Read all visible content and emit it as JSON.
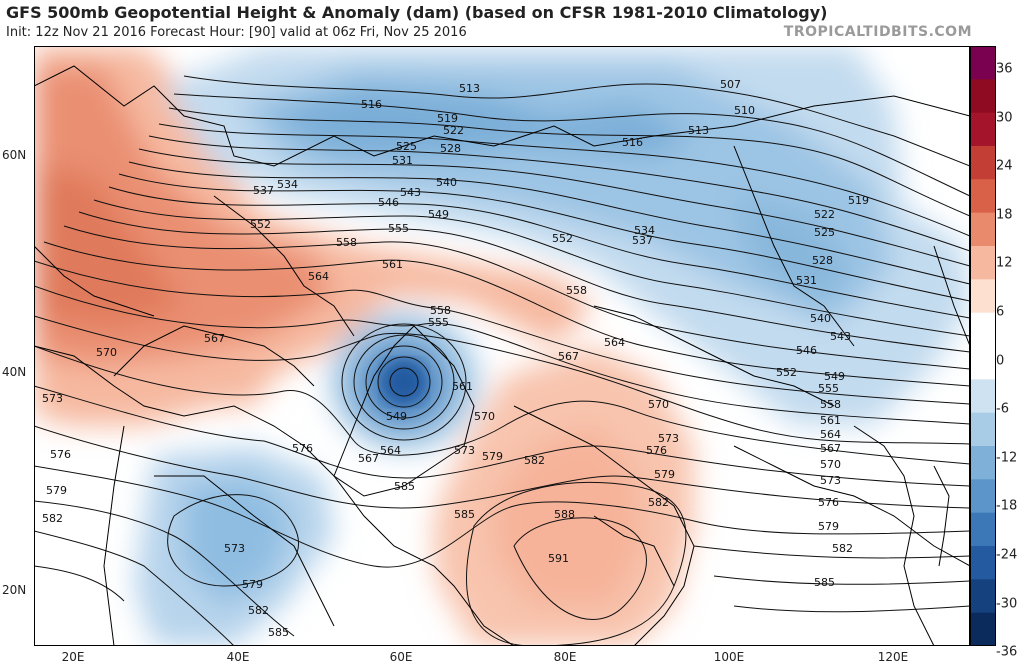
{
  "header": {
    "title": "GFS 500mb Geopotential Height & Anomaly (dam) (based on CFSR 1981-2010 Climatology)",
    "subtitle": "Init: 12z Nov 21 2016   Forecast Hour: [90]   valid at 06z Fri, Nov 25 2016",
    "brand": "TROPICALTIDBITS.COM"
  },
  "axes": {
    "lat_labels": [
      "60N",
      "40N",
      "20N"
    ],
    "lon_labels": [
      "20E",
      "40E",
      "60E",
      "80E",
      "100E",
      "120E"
    ]
  },
  "colorbar": {
    "labels": [
      "36",
      "30",
      "24",
      "18",
      "12",
      "6",
      "0",
      "-6",
      "-12",
      "-18",
      "-24",
      "-30",
      "-36"
    ],
    "colors": [
      "#7a0050",
      "#8e0b22",
      "#a4142a",
      "#c33f35",
      "#d96148",
      "#e98a6c",
      "#f6b9a0",
      "#fde0d0",
      "#ffffff",
      "#ffffff",
      "#cfe2f2",
      "#a8cbe6",
      "#7fb0d8",
      "#5b95c9",
      "#3c78b8",
      "#245aa0",
      "#16417f",
      "#0b2b5c"
    ]
  },
  "contours": {
    "labels": [
      "513",
      "507",
      "510",
      "513",
      "516",
      "519",
      "522",
      "525",
      "528",
      "531",
      "534",
      "537",
      "540",
      "543",
      "546",
      "549",
      "552",
      "555",
      "558",
      "561",
      "564",
      "567",
      "570",
      "573",
      "576",
      "579",
      "582",
      "585",
      "588",
      "591",
      "549",
      "564",
      "567",
      "558",
      "555",
      "561",
      "570",
      "573",
      "576",
      "579",
      "582",
      "585",
      "573",
      "579",
      "582",
      "585",
      "516",
      "519",
      "522",
      "525",
      "528",
      "531",
      "534",
      "537",
      "540",
      "543",
      "546",
      "549",
      "552",
      "555",
      "558",
      "561",
      "564",
      "567",
      "570",
      "573",
      "576",
      "579",
      "582",
      "585",
      "552",
      "558",
      "564",
      "567",
      "570",
      "573",
      "576",
      "579",
      "582"
    ]
  },
  "colors": {
    "land_line": "#000000",
    "contour": "#111111"
  }
}
